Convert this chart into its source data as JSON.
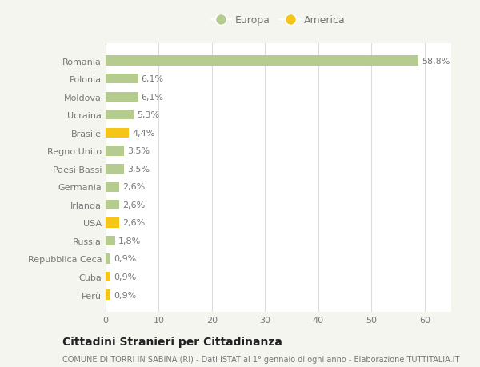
{
  "categories": [
    "Romania",
    "Polonia",
    "Moldova",
    "Ucraina",
    "Brasile",
    "Regno Unito",
    "Paesi Bassi",
    "Germania",
    "Irlanda",
    "USA",
    "Russia",
    "Repubblica Ceca",
    "Cuba",
    "Perù"
  ],
  "values": [
    58.8,
    6.1,
    6.1,
    5.3,
    4.4,
    3.5,
    3.5,
    2.6,
    2.6,
    2.6,
    1.8,
    0.9,
    0.9,
    0.9
  ],
  "labels": [
    "58,8%",
    "6,1%",
    "6,1%",
    "5,3%",
    "4,4%",
    "3,5%",
    "3,5%",
    "2,6%",
    "2,6%",
    "2,6%",
    "1,8%",
    "0,9%",
    "0,9%",
    "0,9%"
  ],
  "continent": [
    "Europa",
    "Europa",
    "Europa",
    "Europa",
    "America",
    "Europa",
    "Europa",
    "Europa",
    "Europa",
    "America",
    "Europa",
    "Europa",
    "America",
    "America"
  ],
  "color_europa": "#b5cc8e",
  "color_america": "#f5c518",
  "bg_color": "#f5f5f0",
  "plot_bg_color": "#ffffff",
  "title1": "Cittadini Stranieri per Cittadinanza",
  "title2": "COMUNE DI TORRI IN SABINA (RI) - Dati ISTAT al 1° gennaio di ogni anno - Elaborazione TUTTITALIA.IT",
  "legend_europa": "Europa",
  "legend_america": "America",
  "xlim": [
    0,
    65
  ],
  "xticks": [
    0,
    10,
    20,
    30,
    40,
    50,
    60
  ],
  "bar_height": 0.55,
  "label_fontsize": 8,
  "tick_fontsize": 8,
  "title1_fontsize": 10,
  "title2_fontsize": 7,
  "grid_color": "#dddddd",
  "text_color": "#777777",
  "title_color": "#222222"
}
